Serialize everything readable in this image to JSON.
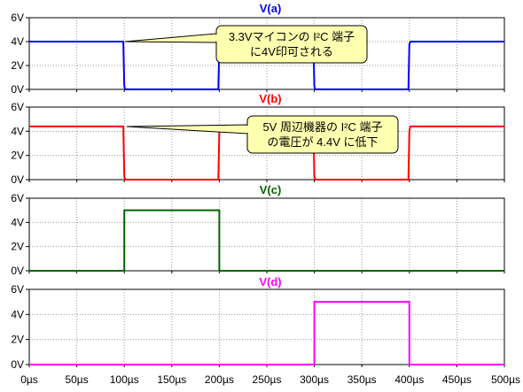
{
  "chart_data": [
    {
      "type": "line",
      "title": "V(a)",
      "color": "#0000ff",
      "x": [
        0,
        99,
        100,
        101,
        199,
        200,
        201,
        299,
        300,
        301,
        399,
        400,
        401,
        500
      ],
      "y": [
        4,
        4,
        0.25,
        0,
        0,
        3.75,
        4,
        4,
        0.25,
        0,
        0,
        3.75,
        4,
        4
      ],
      "ylim": [
        0,
        6
      ],
      "yticks": [
        "0V",
        "2V",
        "4V",
        "6V"
      ],
      "annotation": [
        "3.3Vマイコンの I²C 端子",
        "に4V印可される"
      ]
    },
    {
      "type": "line",
      "title": "V(b)",
      "color": "#ff0000",
      "x": [
        0,
        99,
        100,
        101,
        199,
        200,
        201,
        299,
        300,
        301,
        399,
        400,
        401,
        500
      ],
      "y": [
        4.4,
        4.4,
        0.25,
        0,
        0,
        4.0,
        4.4,
        4.4,
        0.25,
        0,
        0,
        4.0,
        4.4,
        4.4
      ],
      "ylim": [
        0,
        6
      ],
      "yticks": [
        "0V",
        "2V",
        "4V",
        "6V"
      ],
      "annotation": [
        "5V 周辺機器の I²C 端子",
        "の電圧が 4.4V に低下"
      ]
    },
    {
      "type": "line",
      "title": "V(c)",
      "color": "#006400",
      "x": [
        0,
        100,
        100,
        200,
        200,
        500
      ],
      "y": [
        0,
        0,
        5,
        5,
        0,
        0
      ],
      "ylim": [
        0,
        6
      ],
      "yticks": [
        "0V",
        "2V",
        "4V",
        "6V"
      ]
    },
    {
      "type": "line",
      "title": "V(d)",
      "color": "#ff00ff",
      "x": [
        0,
        300,
        300,
        400,
        400,
        500
      ],
      "y": [
        0,
        0,
        5,
        5,
        0,
        0
      ],
      "ylim": [
        0,
        6
      ],
      "yticks": [
        "0V",
        "2V",
        "4V",
        "6V"
      ]
    }
  ],
  "x_axis": {
    "xlim": [
      0,
      500
    ],
    "ticks": [
      "0µs",
      "50µs",
      "100µs",
      "150µs",
      "200µs",
      "250µs",
      "300µs",
      "350µs",
      "400µs",
      "450µs",
      "500µs"
    ]
  },
  "colors": {
    "grid": "#999999",
    "frame": "#000000",
    "callout_fill": "#ffffb0"
  }
}
